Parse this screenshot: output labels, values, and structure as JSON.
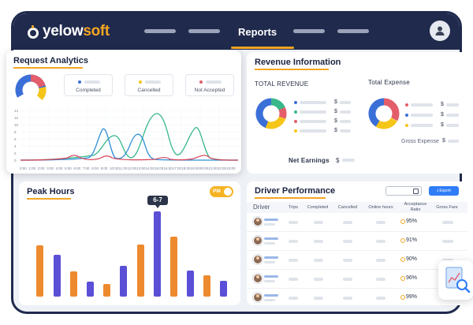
{
  "app": {
    "logo_text_1": "yelow",
    "logo_text_2": "soft"
  },
  "nav": {
    "active_tab": "Reports"
  },
  "request_analytics": {
    "title": "Request Analytics",
    "legend": [
      {
        "label": "Completed",
        "color": "#3b6fd8"
      },
      {
        "label": "Cancelled",
        "color": "#f5c518"
      },
      {
        "label": "Not Accepted",
        "color": "#e35d6a"
      }
    ],
    "y_ticks": [
      "14",
      "12",
      "10",
      "8",
      "6",
      "4",
      "2",
      "0"
    ],
    "x_ticks": [
      "0:00",
      "1:00",
      "2:00",
      "3:00",
      "4:00",
      "5:00",
      "6:00",
      "7:00",
      "8:00",
      "9:00",
      "10:00",
      "11:00",
      "12:00",
      "13:00",
      "14:00",
      "15:00",
      "16:00",
      "17:00",
      "18:00",
      "19:00",
      "20:00",
      "21:00",
      "22:00",
      "23:00"
    ],
    "colors": {
      "green": "#38b88a",
      "blue": "#2f8fd6",
      "red": "#d9435a"
    }
  },
  "revenue": {
    "title": "Revenue Information",
    "total_revenue_label": "TOTAL REVENUE",
    "total_expense_label": "Total Expense",
    "gross_expense_label": "Gross Expense",
    "net_earnings_label": "Net Earnings",
    "currency": "$"
  },
  "peak_hours": {
    "title": "Peak Hours",
    "toggle_label": "PM",
    "tooltip": "6-7",
    "colors": {
      "orange": "#ee8a2e",
      "purple": "#5a4fd6"
    }
  },
  "driver_performance": {
    "title": "Driver Performance",
    "export_label": "Export",
    "columns": [
      "Driver",
      "Trips",
      "Completed",
      "Cancelled",
      "Online hours",
      "Acceptance Ratio",
      "Gross Fare"
    ],
    "ratios": [
      "95%",
      "91%",
      "90%",
      "96%",
      "99%"
    ]
  }
}
